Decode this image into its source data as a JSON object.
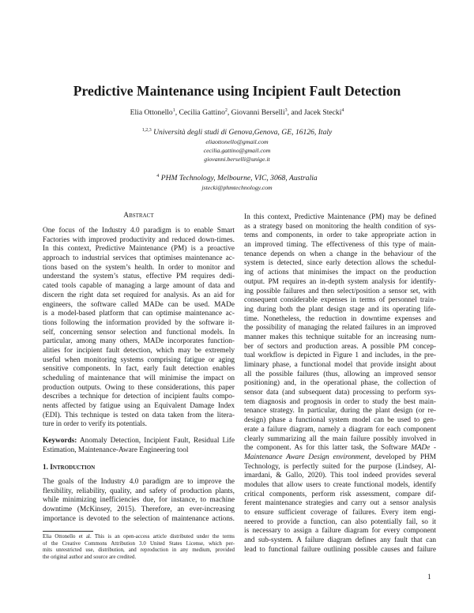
{
  "title": "Predictive Maintenance using Incipient Fault Detection",
  "authors": [
    {
      "name": "Elia Ottonello",
      "sup": "1",
      "sep": ", "
    },
    {
      "name": "Cecilia Gattino",
      "sup": "2",
      "sep": ", "
    },
    {
      "name": "Giovanni Berselli",
      "sup": "3",
      "sep": ", and "
    },
    {
      "name": "Jacek Stecki",
      "sup": "4",
      "sep": ""
    }
  ],
  "affiliations": [
    {
      "sup": "1,2,3",
      "text": "Università degli studi di Genova,Genova, GE, 16126, Italy",
      "emails": [
        "eliaottonello@gmail.com",
        "cecilia.gattino@gmail.com",
        "giovanni.berselli@unige.it"
      ]
    },
    {
      "sup": "4",
      "text": "PHM Technology, Melbourne, VIC, 3068, Australia",
      "emails": [
        "jstecki@phmtechnology.com"
      ]
    }
  ],
  "abstract": {
    "heading": "Abstract",
    "lines": [
      "One focus of the Industry 4.0 paradigm is to enable Smart",
      "Factories with improved productivity and reduced down-times.",
      "In this context, Predictive Maintenance (PM) is a proactive",
      "approach to industrial services that optimises maintenance ac-",
      "tions based on the system’s health. In order to monitor and",
      "understand the system’s status, effective PM requires dedi-",
      "cated tools capable of managing a large amount of data and",
      "discern the right data set required for analysis. As an aid for",
      "engineers, the software called MADe can be used. MADe",
      "is a model-based platform that can optimise maintenance ac-",
      "tions following the information provided by the software it-",
      "self, concerning sensor selection and functional models. In",
      "particular, among many others, MADe incorporates function-",
      "alities for incipient fault detection, which may be extremely",
      "useful when monitoring systems comprising fatigue or aging",
      "sensitive components. In fact, early fault detection enables",
      "scheduling of maintenance that will minimise the impact on",
      "production outputs. Owing to these considerations, this paper",
      "describes a technique for detection of incipient faults compo-",
      "nents affected by fatigue using an Equivalent Damage Index",
      "(EDI). This technique is tested on data taken from the litera-",
      "ture in order to verify its potentials."
    ]
  },
  "keywords": {
    "label": "Keywords:",
    "line1": " Anomaly Detection, Incipient Fault, Residual Life",
    "line2": "Estimation, Maintenance-Aware Engineering tool"
  },
  "introduction": {
    "heading": "1. Introduction",
    "lines": [
      "The goals of the Industry 4.0 paradigm are to improve the",
      "flexibility, reliability, quality, and safety of production plants,",
      "while minimizing inefficiencies due, for instance, to machine",
      "downtime (McKinsey, 2015). Therefore, an ever-increasing",
      "importance is devoted to the selection of maintenance actions."
    ]
  },
  "footnote": {
    "lines": [
      "Elia Ottonello et al. This is an open-access article distributed under the terms",
      "of the Creative Commons Attribution 3.0 United States License, which per-",
      "mits unrestricted use, distribution, and reproduction in any medium, provided",
      "the original author and source are credited."
    ]
  },
  "right_column": {
    "lines": [
      [
        {
          "t": "In this context, Predictive Maintenance (PM) may be defined"
        }
      ],
      [
        {
          "t": "as a strategy based on monitoring the health condition of sys-"
        }
      ],
      [
        {
          "t": "tems and components, in order to take appropriate action in"
        }
      ],
      [
        {
          "t": "an improved timing. The effectiveness of this type of main-"
        }
      ],
      [
        {
          "t": "tenance depends on when a change in the behaviour of the"
        }
      ],
      [
        {
          "t": "system is detected, since early detection allows the schedul-"
        }
      ],
      [
        {
          "t": "ing of actions that minimises the impact on the production"
        }
      ],
      [
        {
          "t": "output. PM requires an in-depth system analysis for identify-"
        }
      ],
      [
        {
          "t": "ing possible failures and then select/position a sensor set, with"
        }
      ],
      [
        {
          "t": "consequent considerable expenses in terms of personnel train-"
        }
      ],
      [
        {
          "t": "ing during both the plant design stage and its operating life-"
        }
      ],
      [
        {
          "t": "time. Nonetheless, the reduction in downtime expenses and"
        }
      ],
      [
        {
          "t": "the possibility of managing the related failures in an improved"
        }
      ],
      [
        {
          "t": "manner makes this technique suitable for an increasing num-"
        }
      ],
      [
        {
          "t": "ber of sectors and production areas. A possible PM concep-"
        }
      ],
      [
        {
          "t": "tual workflow is depicted in Figure 1 and includes, in the pre-"
        }
      ],
      [
        {
          "t": "liminary phase, a functional model that provide insight about"
        }
      ],
      [
        {
          "t": "all the possible failures (thus, allowing an improved sensor"
        }
      ],
      [
        {
          "t": "positioning) and, in the operational phase, the collection of"
        }
      ],
      [
        {
          "t": "sensor data (and subsequent data) processing to perform sys-"
        }
      ],
      [
        {
          "t": "tem diagnosis and prognosis in order to study the best main-"
        }
      ],
      [
        {
          "t": "tenance strategy. In particular, during the plant design (or re-"
        }
      ],
      [
        {
          "t": "design) phase a functional system model can be used to gen-"
        }
      ],
      [
        {
          "t": "erate a failure diagram, namely a diagram for each component"
        }
      ],
      [
        {
          "t": "clearly summarizing all the main failure possibly involved in"
        }
      ],
      [
        {
          "t": "the component. As for this latter task, the Software "
        },
        {
          "t": "MADe -",
          "i": true
        }
      ],
      [
        {
          "t": "Maintenance Aware Design environment",
          "i": true
        },
        {
          "t": ", developed by PHM"
        }
      ],
      [
        {
          "t": "Technology, is perfectly suited for the purpose (Lindsey, Al-"
        }
      ],
      [
        {
          "t": "imardani, & Gallo, 2020). This tool indeed provides several"
        }
      ],
      [
        {
          "t": "modules that allow users to create functional models, identify"
        }
      ],
      [
        {
          "t": "critical components, perform risk assessment, compare dif-"
        }
      ],
      [
        {
          "t": "ferent maintenance strategies and carry out a sensor analysis"
        }
      ],
      [
        {
          "t": "to ensure sufficient coverage of failures. Every item engi-"
        }
      ],
      [
        {
          "t": "neered to provide a function, can also potentially fail, so it"
        }
      ],
      [
        {
          "t": "is necessary to assign a failure diagram for every component"
        }
      ],
      [
        {
          "t": "and sub-system. A failure diagram defines any fault that can"
        }
      ],
      [
        {
          "t": "lead to functional failure outlining possible causes and failure"
        }
      ]
    ]
  },
  "page_number": "1"
}
